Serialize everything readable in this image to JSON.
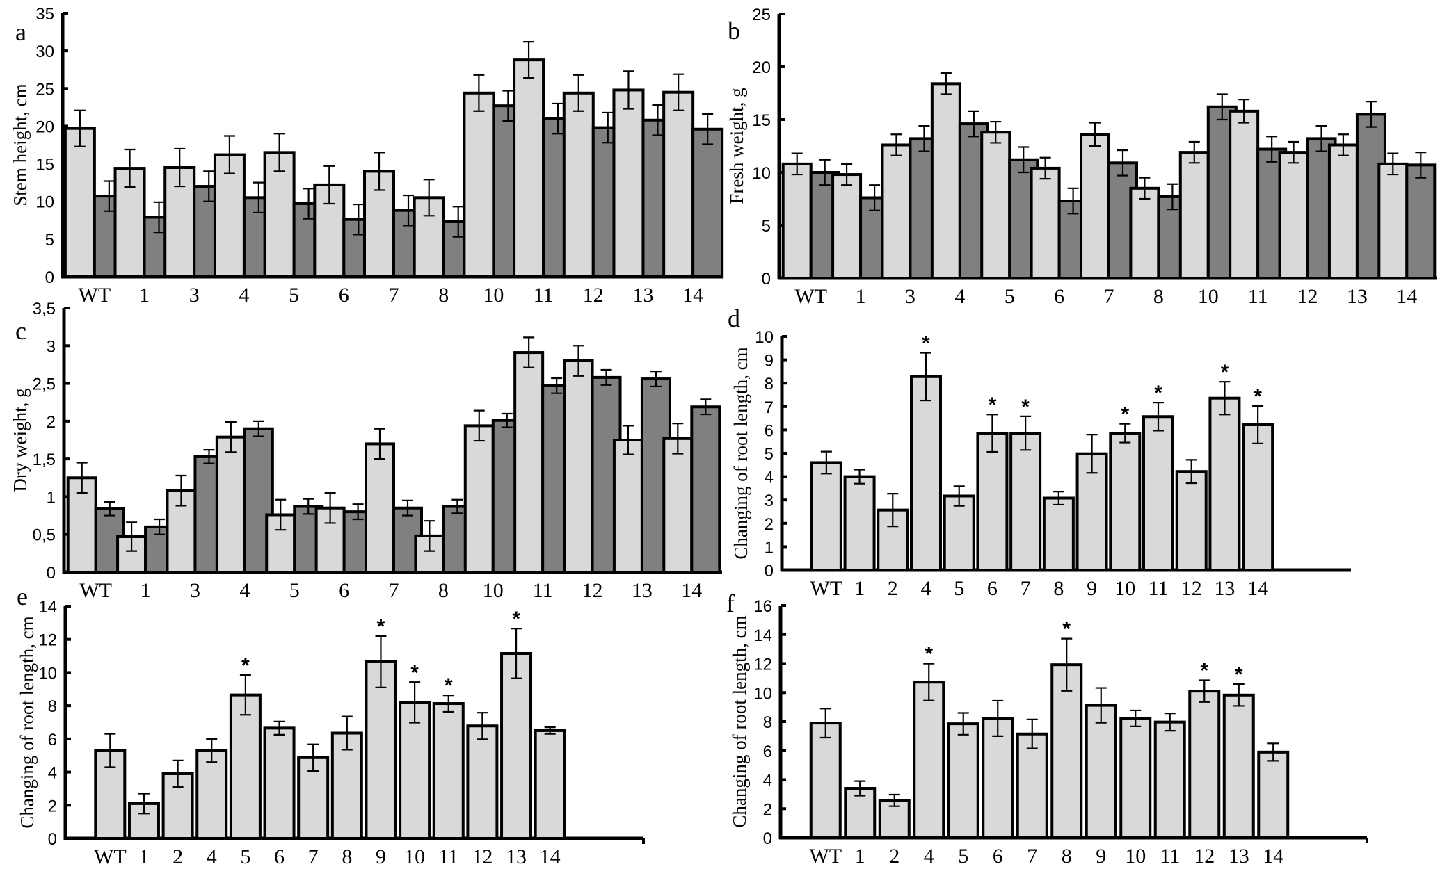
{
  "figure": {
    "description": "Six-panel bar chart figure (a–f) of plant growth parameters for WT and numbered lines"
  },
  "colors": {
    "series_light": "#d9d9d9",
    "series_dark": "#808080",
    "axis": "#000000"
  },
  "chart_data": [
    {
      "id": "a",
      "panel_letter": "a",
      "type": "bar",
      "title": "",
      "xlabel": "",
      "ylabel": "Stem height, cm",
      "ylim": [
        0,
        35
      ],
      "yticks": [
        0,
        5,
        10,
        15,
        20,
        25,
        30,
        35
      ],
      "ytick_labels": [
        "0",
        "5",
        "10",
        "15",
        "20",
        "25",
        "30",
        "35"
      ],
      "grid": false,
      "legend": null,
      "categories": [
        "WT",
        "1",
        "3",
        "4",
        "5",
        "6",
        "7",
        "8",
        "10",
        "11",
        "12",
        "13",
        "14"
      ],
      "series": [
        {
          "name": "series 1 (light)",
          "color": "#d9d9d9",
          "values": [
            19.7,
            14.4,
            14.5,
            16.2,
            16.5,
            12.2,
            14.0,
            10.5,
            24.4,
            28.8,
            24.4,
            24.8,
            24.5
          ],
          "errors": [
            2.4,
            2.5,
            2.5,
            2.5,
            2.5,
            2.5,
            2.5,
            2.4,
            2.4,
            2.4,
            2.4,
            2.5,
            2.4
          ]
        },
        {
          "name": "series 2 (dark)",
          "color": "#808080",
          "values": [
            10.7,
            7.9,
            12.0,
            10.5,
            9.7,
            7.6,
            8.8,
            7.3,
            22.7,
            21.0,
            19.8,
            20.8,
            19.6
          ],
          "errors": [
            2.0,
            2.0,
            2.0,
            2.0,
            2.0,
            2.0,
            2.0,
            2.0,
            2.0,
            2.0,
            2.0,
            2.0,
            2.0
          ]
        }
      ],
      "significance": []
    },
    {
      "id": "b",
      "panel_letter": "b",
      "type": "bar",
      "title": "",
      "xlabel": "",
      "ylabel": "Fresh weight, g",
      "ylim": [
        0,
        25
      ],
      "yticks": [
        0,
        5,
        10,
        15,
        20,
        25
      ],
      "ytick_labels": [
        "0",
        "5",
        "10",
        "15",
        "20",
        "25"
      ],
      "grid": false,
      "legend": null,
      "categories": [
        "WT",
        "1",
        "3",
        "4",
        "5",
        "6",
        "7",
        "8",
        "10",
        "11",
        "12",
        "13",
        "14"
      ],
      "series": [
        {
          "name": "series 1 (light)",
          "color": "#d9d9d9",
          "values": [
            10.8,
            9.8,
            12.6,
            18.4,
            13.8,
            10.4,
            13.6,
            8.5,
            11.9,
            15.8,
            11.9,
            12.6,
            10.8
          ],
          "errors": [
            1.0,
            1.0,
            1.0,
            1.0,
            1.0,
            1.0,
            1.1,
            1.0,
            1.0,
            1.1,
            1.0,
            1.0,
            1.0
          ]
        },
        {
          "name": "series 2 (dark)",
          "color": "#808080",
          "values": [
            10.0,
            7.6,
            13.2,
            14.6,
            11.2,
            7.3,
            10.9,
            7.7,
            16.2,
            12.2,
            13.2,
            15.5,
            10.7
          ],
          "errors": [
            1.2,
            1.2,
            1.2,
            1.2,
            1.2,
            1.2,
            1.2,
            1.2,
            1.2,
            1.2,
            1.2,
            1.2,
            1.2
          ]
        }
      ],
      "significance": []
    },
    {
      "id": "c",
      "panel_letter": "c",
      "type": "bar",
      "title": "",
      "xlabel": "",
      "ylabel": "Dry weight, g",
      "ylim": [
        0,
        3.5
      ],
      "yticks": [
        0,
        0.5,
        1,
        1.5,
        2,
        2.5,
        3,
        3.5
      ],
      "ytick_labels": [
        "0",
        "0,5",
        "1",
        "1,5",
        "2",
        "2,5",
        "3",
        "3,5"
      ],
      "grid": false,
      "legend": null,
      "categories": [
        "WT",
        "1",
        "3",
        "4",
        "5",
        "6",
        "7",
        "8",
        "10",
        "11",
        "12",
        "13",
        "14"
      ],
      "series": [
        {
          "name": "series 1 (light)",
          "color": "#d9d9d9",
          "values": [
            1.25,
            0.47,
            1.08,
            1.79,
            0.76,
            0.85,
            1.7,
            0.48,
            1.94,
            2.91,
            2.8,
            1.75,
            1.77
          ],
          "errors": [
            0.2,
            0.19,
            0.2,
            0.2,
            0.2,
            0.2,
            0.2,
            0.2,
            0.2,
            0.2,
            0.2,
            0.19,
            0.2
          ]
        },
        {
          "name": "series 2 (dark)",
          "color": "#808080",
          "values": [
            0.84,
            0.6,
            1.53,
            1.9,
            0.87,
            0.8,
            0.85,
            0.87,
            2.01,
            2.47,
            2.58,
            2.56,
            2.19
          ],
          "errors": [
            0.09,
            0.1,
            0.09,
            0.1,
            0.1,
            0.1,
            0.1,
            0.09,
            0.09,
            0.1,
            0.1,
            0.1,
            0.1
          ]
        }
      ],
      "significance": []
    },
    {
      "id": "d",
      "panel_letter": "d",
      "type": "bar",
      "title": "",
      "xlabel": "",
      "ylabel": "Changing of root length, cm",
      "ylim": [
        0,
        10
      ],
      "yticks": [
        0,
        1,
        2,
        3,
        4,
        5,
        6,
        7,
        8,
        9,
        10
      ],
      "ytick_labels": [
        "0",
        "1",
        "2",
        "3",
        "4",
        "5",
        "6",
        "7",
        "8",
        "9",
        "10"
      ],
      "grid": false,
      "legend": null,
      "categories": [
        "WT",
        "1",
        "2",
        "4",
        "5",
        "6",
        "7",
        "8",
        "9",
        "10",
        "11",
        "12",
        "13",
        "14"
      ],
      "series": [
        {
          "name": "root length change",
          "color": "#d9d9d9",
          "values": [
            4.6,
            4.0,
            2.57,
            8.28,
            3.17,
            5.86,
            5.86,
            3.08,
            4.98,
            5.86,
            6.57,
            4.22,
            7.36,
            6.22
          ],
          "errors": [
            0.47,
            0.3,
            0.7,
            1.02,
            0.42,
            0.8,
            0.72,
            0.28,
            0.82,
            0.4,
            0.6,
            0.5,
            0.7,
            0.8
          ]
        }
      ],
      "significance": [
        "",
        "",
        "",
        "*",
        "",
        "*",
        "*",
        "",
        "",
        "*",
        "*",
        "",
        "*",
        "*"
      ]
    },
    {
      "id": "e",
      "panel_letter": "e",
      "type": "bar",
      "title": "",
      "xlabel": "",
      "ylabel": "Changing of root length, cm",
      "ylim": [
        0,
        14
      ],
      "yticks": [
        0,
        2,
        4,
        6,
        8,
        10,
        12,
        14
      ],
      "ytick_labels": [
        "0",
        "2",
        "4",
        "6",
        "8",
        "10",
        "12",
        "14"
      ],
      "grid": false,
      "legend": null,
      "categories": [
        "WT",
        "1",
        "2",
        "4",
        "5",
        "6",
        "7",
        "8",
        "9",
        "10",
        "11",
        "12",
        "13",
        "14"
      ],
      "series": [
        {
          "name": "root length change",
          "color": "#d9d9d9",
          "values": [
            5.3,
            2.1,
            3.9,
            5.3,
            8.65,
            6.65,
            4.87,
            6.35,
            10.65,
            8.2,
            8.13,
            6.78,
            11.15,
            6.5
          ],
          "errors": [
            1.0,
            0.6,
            0.8,
            0.7,
            1.2,
            0.4,
            0.8,
            1.0,
            1.55,
            1.22,
            0.5,
            0.8,
            1.5,
            0.2
          ]
        }
      ],
      "significance": [
        "",
        "",
        "",
        "",
        "*",
        "",
        "",
        "",
        "*",
        "*",
        "*",
        "",
        "*",
        ""
      ]
    },
    {
      "id": "f",
      "panel_letter": "f",
      "type": "bar",
      "title": "",
      "xlabel": "",
      "ylabel": "Changing of root length, cm",
      "ylim": [
        0,
        16
      ],
      "yticks": [
        0,
        2,
        4,
        6,
        8,
        10,
        12,
        14,
        16
      ],
      "ytick_labels": [
        "0",
        "2",
        "4",
        "6",
        "8",
        "10",
        "12",
        "14",
        "16"
      ],
      "grid": false,
      "legend": null,
      "categories": [
        "WT",
        "1",
        "2",
        "4",
        "5",
        "6",
        "7",
        "8",
        "9",
        "10",
        "11",
        "12",
        "13",
        "14"
      ],
      "series": [
        {
          "name": "root length change",
          "color": "#d9d9d9",
          "values": [
            7.9,
            3.4,
            2.57,
            10.72,
            7.85,
            8.22,
            7.15,
            11.92,
            9.12,
            8.22,
            7.97,
            10.1,
            9.83,
            5.9
          ],
          "errors": [
            1.0,
            0.5,
            0.4,
            1.27,
            0.75,
            1.22,
            1.0,
            1.8,
            1.2,
            0.55,
            0.6,
            0.75,
            0.75,
            0.6
          ]
        }
      ],
      "significance": [
        "",
        "",
        "",
        "*",
        "",
        "",
        "",
        "*",
        "",
        "",
        "",
        "*",
        "*",
        ""
      ]
    }
  ]
}
